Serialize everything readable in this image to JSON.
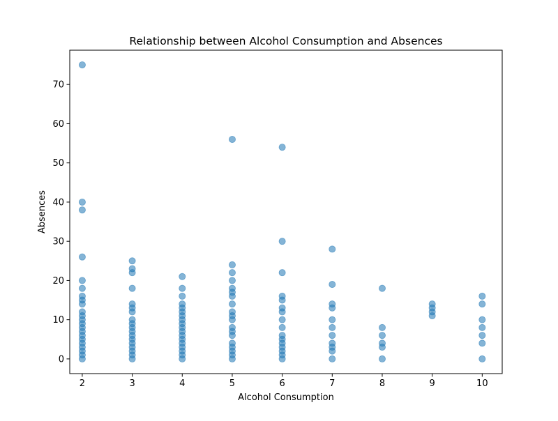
{
  "chart_data": {
    "type": "scatter",
    "title": "Relationship between Alcohol Consumption and Absences",
    "xlabel": "Alcohol Consumption",
    "ylabel": "Absences",
    "xlim": [
      1.75,
      10.4
    ],
    "ylim": [
      -3.75,
      78.75
    ],
    "xticks": [
      2,
      3,
      4,
      5,
      6,
      7,
      8,
      9,
      10
    ],
    "yticks": [
      0,
      10,
      20,
      30,
      40,
      50,
      60,
      70
    ],
    "grid": false,
    "legend": "none",
    "marker_color": "#1f77b4",
    "marker_alpha": 0.55,
    "series": [
      {
        "points": [
          [
            2,
            75
          ],
          [
            2,
            40
          ],
          [
            2,
            38
          ],
          [
            2,
            26
          ],
          [
            2,
            20
          ],
          [
            2,
            18
          ],
          [
            2,
            16
          ],
          [
            2,
            15
          ],
          [
            2,
            14
          ],
          [
            2,
            12
          ],
          [
            2,
            11
          ],
          [
            2,
            10
          ],
          [
            2,
            9
          ],
          [
            2,
            8
          ],
          [
            2,
            7
          ],
          [
            2,
            6
          ],
          [
            2,
            5
          ],
          [
            2,
            4
          ],
          [
            2,
            3
          ],
          [
            2,
            2
          ],
          [
            2,
            1
          ],
          [
            2,
            0
          ],
          [
            3,
            25
          ],
          [
            3,
            23
          ],
          [
            3,
            22
          ],
          [
            3,
            18
          ],
          [
            3,
            14
          ],
          [
            3,
            13
          ],
          [
            3,
            12
          ],
          [
            3,
            10
          ],
          [
            3,
            9
          ],
          [
            3,
            8
          ],
          [
            3,
            7
          ],
          [
            3,
            6
          ],
          [
            3,
            5
          ],
          [
            3,
            4
          ],
          [
            3,
            3
          ],
          [
            3,
            2
          ],
          [
            3,
            1
          ],
          [
            3,
            0
          ],
          [
            4,
            21
          ],
          [
            4,
            18
          ],
          [
            4,
            16
          ],
          [
            4,
            14
          ],
          [
            4,
            13
          ],
          [
            4,
            12
          ],
          [
            4,
            11
          ],
          [
            4,
            10
          ],
          [
            4,
            9
          ],
          [
            4,
            8
          ],
          [
            4,
            7
          ],
          [
            4,
            6
          ],
          [
            4,
            5
          ],
          [
            4,
            4
          ],
          [
            4,
            3
          ],
          [
            4,
            2
          ],
          [
            4,
            1
          ],
          [
            4,
            0
          ],
          [
            5,
            56
          ],
          [
            5,
            24
          ],
          [
            5,
            22
          ],
          [
            5,
            20
          ],
          [
            5,
            18
          ],
          [
            5,
            17
          ],
          [
            5,
            16
          ],
          [
            5,
            14
          ],
          [
            5,
            12
          ],
          [
            5,
            11
          ],
          [
            5,
            10
          ],
          [
            5,
            8
          ],
          [
            5,
            7
          ],
          [
            5,
            6
          ],
          [
            5,
            4
          ],
          [
            5,
            3
          ],
          [
            5,
            2
          ],
          [
            5,
            1
          ],
          [
            5,
            0
          ],
          [
            6,
            54
          ],
          [
            6,
            30
          ],
          [
            6,
            22
          ],
          [
            6,
            16
          ],
          [
            6,
            15
          ],
          [
            6,
            13
          ],
          [
            6,
            12
          ],
          [
            6,
            10
          ],
          [
            6,
            8
          ],
          [
            6,
            6
          ],
          [
            6,
            5
          ],
          [
            6,
            4
          ],
          [
            6,
            3
          ],
          [
            6,
            2
          ],
          [
            6,
            1
          ],
          [
            6,
            0
          ],
          [
            7,
            28
          ],
          [
            7,
            19
          ],
          [
            7,
            14
          ],
          [
            7,
            13
          ],
          [
            7,
            10
          ],
          [
            7,
            8
          ],
          [
            7,
            6
          ],
          [
            7,
            4
          ],
          [
            7,
            3
          ],
          [
            7,
            2
          ],
          [
            7,
            0
          ],
          [
            8,
            18
          ],
          [
            8,
            8
          ],
          [
            8,
            6
          ],
          [
            8,
            4
          ],
          [
            8,
            3
          ],
          [
            8,
            0
          ],
          [
            9,
            14
          ],
          [
            9,
            13
          ],
          [
            9,
            12
          ],
          [
            9,
            11
          ],
          [
            10,
            16
          ],
          [
            10,
            14
          ],
          [
            10,
            10
          ],
          [
            10,
            8
          ],
          [
            10,
            6
          ],
          [
            10,
            4
          ],
          [
            10,
            0
          ]
        ]
      }
    ]
  }
}
